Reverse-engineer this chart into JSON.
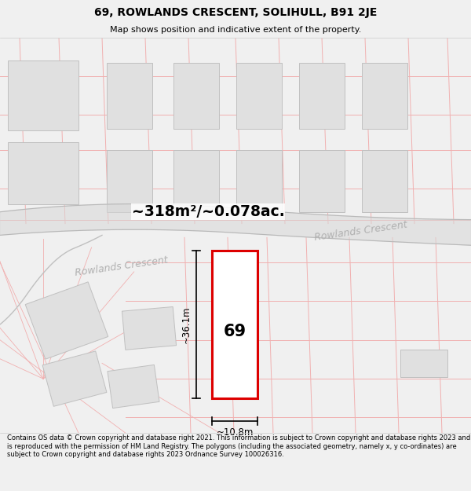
{
  "title_line1": "69, ROWLANDS CRESCENT, SOLIHULL, B91 2JE",
  "title_line2": "Map shows position and indicative extent of the property.",
  "area_text": "~318m²/~0.078ac.",
  "street_name_left": "Rowlands Crescent",
  "street_name_right": "Rowlands Crescent",
  "number_label": "69",
  "dim_height": "~36.1m",
  "dim_width": "~10.8m",
  "footer_text": "Contains OS data © Crown copyright and database right 2021. This information is subject to Crown copyright and database rights 2023 and is reproduced with the permission of HM Land Registry. The polygons (including the associated geometry, namely x, y co-ordinates) are subject to Crown copyright and database rights 2023 Ordnance Survey 100026316.",
  "bg_color": "#f0f0f0",
  "map_bg": "#ffffff",
  "plot_color": "#dd0000",
  "plot_fill": "#ffffff",
  "grid_color": "#f0b0b0",
  "building_color": "#e0e0e0",
  "building_edge": "#c0c0c0",
  "road_color": "#d8d8d8",
  "text_color": "#000000",
  "street_text_color": "#b0b0b0",
  "title_fontsize": 10,
  "subtitle_fontsize": 8,
  "footer_fontsize": 6.0
}
